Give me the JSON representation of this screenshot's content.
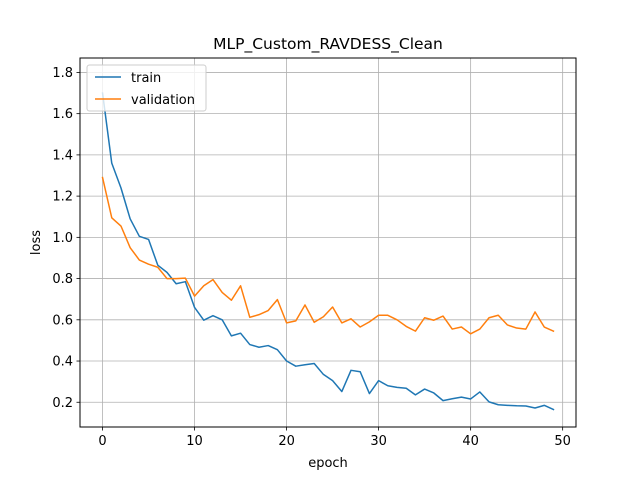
{
  "chart_data": {
    "type": "line",
    "title": "MLP_Custom_RAVDESS_Clean",
    "xlabel": "epoch",
    "ylabel": "loss",
    "xlim": [
      -2.45,
      51.45
    ],
    "ylim": [
      0.08,
      1.87
    ],
    "xticks": [
      0,
      10,
      20,
      30,
      40,
      50
    ],
    "yticks": [
      0.2,
      0.4,
      0.6,
      0.8,
      1.0,
      1.2,
      1.4,
      1.6,
      1.8
    ],
    "grid": true,
    "legend_position": "top-left",
    "x": [
      0,
      1,
      2,
      3,
      4,
      5,
      6,
      7,
      8,
      9,
      10,
      11,
      12,
      13,
      14,
      15,
      16,
      17,
      18,
      19,
      20,
      21,
      22,
      23,
      24,
      25,
      26,
      27,
      28,
      29,
      30,
      31,
      32,
      33,
      34,
      35,
      36,
      37,
      38,
      39,
      40,
      41,
      42,
      43,
      44,
      45,
      46,
      47,
      48,
      49
    ],
    "series": [
      {
        "name": "train",
        "color": "#1f77b4",
        "values": [
          1.7,
          1.36,
          1.24,
          1.09,
          1.005,
          0.99,
          0.865,
          0.83,
          0.775,
          0.785,
          0.66,
          0.598,
          0.62,
          0.6,
          0.522,
          0.535,
          0.48,
          0.467,
          0.475,
          0.455,
          0.4,
          0.375,
          0.382,
          0.388,
          0.335,
          0.305,
          0.252,
          0.355,
          0.348,
          0.242,
          0.305,
          0.28,
          0.272,
          0.268,
          0.236,
          0.264,
          0.245,
          0.208,
          0.217,
          0.225,
          0.216,
          0.25,
          0.202,
          0.188,
          0.185,
          0.183,
          0.182,
          0.172,
          0.185,
          0.165
        ]
      },
      {
        "name": "validation",
        "color": "#ff7f0e",
        "values": [
          1.29,
          1.095,
          1.055,
          0.95,
          0.89,
          0.87,
          0.855,
          0.8,
          0.8,
          0.802,
          0.715,
          0.765,
          0.795,
          0.733,
          0.695,
          0.765,
          0.612,
          0.625,
          0.645,
          0.698,
          0.585,
          0.595,
          0.672,
          0.588,
          0.615,
          0.662,
          0.585,
          0.605,
          0.565,
          0.59,
          0.622,
          0.622,
          0.6,
          0.568,
          0.545,
          0.61,
          0.598,
          0.618,
          0.555,
          0.565,
          0.532,
          0.555,
          0.61,
          0.622,
          0.575,
          0.56,
          0.555,
          0.638,
          0.565,
          0.545
        ]
      }
    ]
  }
}
